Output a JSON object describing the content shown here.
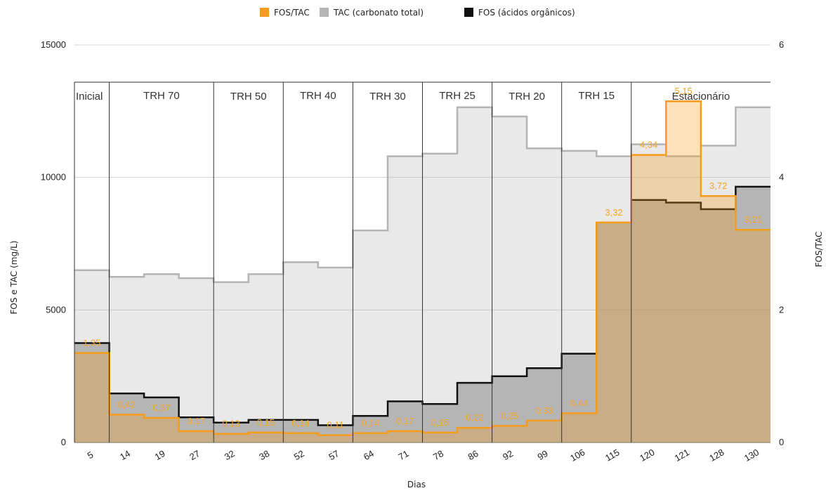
{
  "chart_data": {
    "type": "area",
    "step": true,
    "legend_position": "top-center",
    "xlabel": "Dias",
    "ylabel_left": "FOS e TAC (mg/L)",
    "ylabel_right": "FOS/TAC",
    "ylim_left": [
      0,
      15000
    ],
    "ylim_right": [
      0,
      6
    ],
    "yticks_left": [
      "0",
      "5000",
      "10000",
      "15000"
    ],
    "yticks_right": [
      "0",
      "2",
      "4",
      "6"
    ],
    "grid": true,
    "categories": [
      "5",
      "14",
      "19",
      "27",
      "32",
      "38",
      "52",
      "57",
      "64",
      "71",
      "78",
      "86",
      "92",
      "99",
      "106",
      "115",
      "120",
      "121",
      "128",
      "130"
    ],
    "series": [
      {
        "name": "FOS/TAC",
        "axis": "right",
        "color": "#f59c1a",
        "values": [
          1.35,
          0.42,
          0.37,
          0.17,
          0.13,
          0.15,
          0.14,
          0.11,
          0.14,
          0.17,
          0.15,
          0.22,
          0.25,
          0.33,
          0.44,
          3.32,
          4.34,
          5.15,
          3.72,
          3.21
        ],
        "labels": [
          "1,35",
          "0,42",
          "0,37",
          "0,17",
          "0,13",
          "0,15",
          "0,14",
          "0,11",
          "0,14",
          "0,17",
          "0,15",
          "0,22",
          "0,25",
          "0,33",
          "0,44",
          "3,32",
          "4,34",
          "5,15",
          "3,72",
          "3,21"
        ]
      },
      {
        "name": "TAC (carbonato total)",
        "axis": "left",
        "color": "#b4b4b4",
        "values": [
          6500,
          6250,
          6350,
          6200,
          6050,
          6350,
          6800,
          6600,
          8000,
          10800,
          10900,
          12650,
          12300,
          11100,
          11000,
          10800,
          11250,
          10800,
          11200,
          12650
        ]
      },
      {
        "name": "FOS (ácidos orgânicos)",
        "axis": "left",
        "color": "#111111",
        "values": [
          3750,
          1850,
          1700,
          950,
          750,
          850,
          850,
          650,
          1000,
          1550,
          1450,
          2250,
          2500,
          2800,
          3350,
          8300,
          9150,
          9050,
          8800,
          9650
        ]
      }
    ],
    "phases": [
      {
        "label": "Inicial",
        "from": 0,
        "to": 1
      },
      {
        "label": "TRH 70",
        "from": 1,
        "to": 4
      },
      {
        "label": "TRH 50",
        "from": 4,
        "to": 6
      },
      {
        "label": "TRH 40",
        "from": 6,
        "to": 8
      },
      {
        "label": "TRH 30",
        "from": 8,
        "to": 10
      },
      {
        "label": "TRH 25",
        "from": 10,
        "to": 12
      },
      {
        "label": "TRH 20",
        "from": 12,
        "to": 14
      },
      {
        "label": "TRH 15",
        "from": 14,
        "to": 16
      },
      {
        "label": "Estacionário",
        "from": 16,
        "to": 20
      }
    ]
  }
}
